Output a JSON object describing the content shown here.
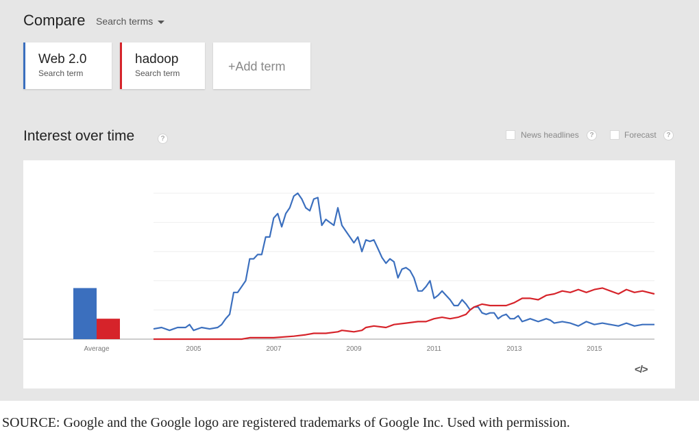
{
  "compare": {
    "title": "Compare",
    "search_terms_label": "Search terms"
  },
  "terms": [
    {
      "name": "Web 2.0",
      "sub": "Search term",
      "color": "#3b6fbe"
    },
    {
      "name": "hadoop",
      "sub": "Search term",
      "color": "#d6232a"
    }
  ],
  "add_term": "+Add term",
  "interest": {
    "title": "Interest over time",
    "help_icon": "question-mark",
    "news_headlines": "News headlines",
    "forecast": "Forecast"
  },
  "chart_data": {
    "type": "line",
    "x_ticks": [
      "2005",
      "2007",
      "2009",
      "2011",
      "2013",
      "2015"
    ],
    "x_range": [
      2004.0,
      2016.5
    ],
    "ylim": [
      0,
      100
    ],
    "average_label": "Average",
    "averages": [
      35,
      14
    ],
    "grid": true,
    "series": [
      {
        "name": "Web 2.0",
        "color": "#3b6fbe",
        "points": [
          [
            2004.0,
            7
          ],
          [
            2004.2,
            8
          ],
          [
            2004.4,
            6
          ],
          [
            2004.6,
            8
          ],
          [
            2004.8,
            8
          ],
          [
            2004.9,
            10
          ],
          [
            2005.0,
            6
          ],
          [
            2005.2,
            8
          ],
          [
            2005.4,
            7
          ],
          [
            2005.6,
            8
          ],
          [
            2005.7,
            10
          ],
          [
            2005.8,
            14
          ],
          [
            2005.9,
            17
          ],
          [
            2006.0,
            32
          ],
          [
            2006.1,
            32
          ],
          [
            2006.2,
            36
          ],
          [
            2006.3,
            40
          ],
          [
            2006.4,
            55
          ],
          [
            2006.5,
            55
          ],
          [
            2006.6,
            58
          ],
          [
            2006.7,
            58
          ],
          [
            2006.8,
            70
          ],
          [
            2006.9,
            70
          ],
          [
            2007.0,
            83
          ],
          [
            2007.1,
            86
          ],
          [
            2007.2,
            77
          ],
          [
            2007.3,
            86
          ],
          [
            2007.4,
            90
          ],
          [
            2007.5,
            98
          ],
          [
            2007.6,
            100
          ],
          [
            2007.7,
            96
          ],
          [
            2007.8,
            90
          ],
          [
            2007.9,
            88
          ],
          [
            2008.0,
            96
          ],
          [
            2008.1,
            97
          ],
          [
            2008.2,
            78
          ],
          [
            2008.3,
            82
          ],
          [
            2008.4,
            80
          ],
          [
            2008.5,
            78
          ],
          [
            2008.6,
            90
          ],
          [
            2008.7,
            78
          ],
          [
            2008.8,
            74
          ],
          [
            2008.9,
            70
          ],
          [
            2009.0,
            66
          ],
          [
            2009.1,
            70
          ],
          [
            2009.2,
            60
          ],
          [
            2009.3,
            68
          ],
          [
            2009.4,
            67
          ],
          [
            2009.5,
            68
          ],
          [
            2009.6,
            62
          ],
          [
            2009.7,
            56
          ],
          [
            2009.8,
            52
          ],
          [
            2009.9,
            55
          ],
          [
            2010.0,
            53
          ],
          [
            2010.1,
            42
          ],
          [
            2010.2,
            48
          ],
          [
            2010.3,
            49
          ],
          [
            2010.4,
            47
          ],
          [
            2010.5,
            42
          ],
          [
            2010.6,
            33
          ],
          [
            2010.7,
            33
          ],
          [
            2010.8,
            36
          ],
          [
            2010.9,
            40
          ],
          [
            2011.0,
            28
          ],
          [
            2011.1,
            30
          ],
          [
            2011.2,
            33
          ],
          [
            2011.3,
            30
          ],
          [
            2011.4,
            27
          ],
          [
            2011.5,
            23
          ],
          [
            2011.6,
            23
          ],
          [
            2011.7,
            27
          ],
          [
            2011.8,
            24
          ],
          [
            2011.9,
            20
          ],
          [
            2012.0,
            22
          ],
          [
            2012.1,
            22
          ],
          [
            2012.2,
            18
          ],
          [
            2012.3,
            17
          ],
          [
            2012.4,
            18
          ],
          [
            2012.5,
            18
          ],
          [
            2012.6,
            14
          ],
          [
            2012.7,
            16
          ],
          [
            2012.8,
            17
          ],
          [
            2012.9,
            14
          ],
          [
            2013.0,
            14
          ],
          [
            2013.1,
            16
          ],
          [
            2013.2,
            12
          ],
          [
            2013.3,
            13
          ],
          [
            2013.4,
            14
          ],
          [
            2013.5,
            13
          ],
          [
            2013.6,
            12
          ],
          [
            2013.7,
            13
          ],
          [
            2013.8,
            14
          ],
          [
            2013.9,
            13
          ],
          [
            2014.0,
            11
          ],
          [
            2014.2,
            12
          ],
          [
            2014.4,
            11
          ],
          [
            2014.6,
            9
          ],
          [
            2014.8,
            12
          ],
          [
            2015.0,
            10
          ],
          [
            2015.2,
            11
          ],
          [
            2015.4,
            10
          ],
          [
            2015.6,
            9
          ],
          [
            2015.8,
            11
          ],
          [
            2016.0,
            9
          ],
          [
            2016.2,
            10
          ],
          [
            2016.5,
            10
          ]
        ]
      },
      {
        "name": "hadoop",
        "color": "#d6232a",
        "points": [
          [
            2004.0,
            0
          ],
          [
            2006.2,
            0
          ],
          [
            2006.4,
            1
          ],
          [
            2007.0,
            1
          ],
          [
            2007.5,
            2
          ],
          [
            2007.8,
            3
          ],
          [
            2008.0,
            4
          ],
          [
            2008.3,
            4
          ],
          [
            2008.6,
            5
          ],
          [
            2008.7,
            6
          ],
          [
            2009.0,
            5
          ],
          [
            2009.2,
            6
          ],
          [
            2009.3,
            8
          ],
          [
            2009.5,
            9
          ],
          [
            2009.8,
            8
          ],
          [
            2010.0,
            10
          ],
          [
            2010.3,
            11
          ],
          [
            2010.6,
            12
          ],
          [
            2010.8,
            12
          ],
          [
            2011.0,
            14
          ],
          [
            2011.2,
            15
          ],
          [
            2011.4,
            14
          ],
          [
            2011.6,
            15
          ],
          [
            2011.8,
            17
          ],
          [
            2011.9,
            20
          ],
          [
            2012.0,
            22
          ],
          [
            2012.2,
            24
          ],
          [
            2012.4,
            23
          ],
          [
            2012.6,
            23
          ],
          [
            2012.8,
            23
          ],
          [
            2013.0,
            25
          ],
          [
            2013.2,
            28
          ],
          [
            2013.4,
            28
          ],
          [
            2013.6,
            27
          ],
          [
            2013.8,
            30
          ],
          [
            2014.0,
            31
          ],
          [
            2014.2,
            33
          ],
          [
            2014.4,
            32
          ],
          [
            2014.6,
            34
          ],
          [
            2014.8,
            32
          ],
          [
            2015.0,
            34
          ],
          [
            2015.2,
            35
          ],
          [
            2015.4,
            33
          ],
          [
            2015.6,
            31
          ],
          [
            2015.8,
            34
          ],
          [
            2016.0,
            32
          ],
          [
            2016.2,
            33
          ],
          [
            2016.5,
            31
          ]
        ]
      }
    ]
  },
  "embed_icon": "</>",
  "source_note": "SOURCE: Google and the Google logo are registered trademarks of Google Inc. Used with permission."
}
